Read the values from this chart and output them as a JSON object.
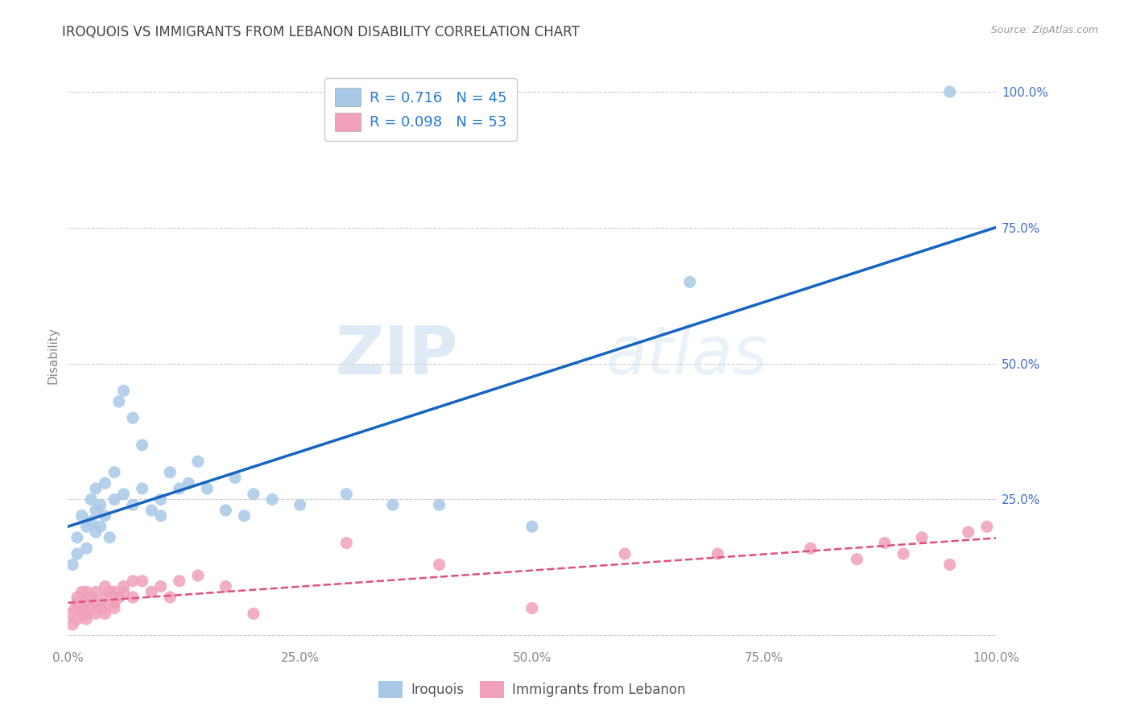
{
  "title": "IROQUOIS VS IMMIGRANTS FROM LEBANON DISABILITY CORRELATION CHART",
  "source": "Source: ZipAtlas.com",
  "ylabel": "Disability",
  "watermark_zip": "ZIP",
  "watermark_atlas": "atlas",
  "iroquois_R": 0.716,
  "iroquois_N": 45,
  "lebanon_R": 0.098,
  "lebanon_N": 53,
  "blue_color": "#a8c8e8",
  "blue_line_color": "#1565c0",
  "pink_color": "#f0a0b8",
  "pink_line_color": "#e05080",
  "iroquois_x": [
    0.005,
    0.01,
    0.01,
    0.015,
    0.02,
    0.02,
    0.025,
    0.025,
    0.03,
    0.03,
    0.03,
    0.035,
    0.035,
    0.04,
    0.04,
    0.045,
    0.05,
    0.05,
    0.055,
    0.06,
    0.06,
    0.07,
    0.07,
    0.08,
    0.08,
    0.09,
    0.1,
    0.1,
    0.11,
    0.12,
    0.13,
    0.14,
    0.15,
    0.17,
    0.18,
    0.19,
    0.2,
    0.22,
    0.25,
    0.3,
    0.35,
    0.4,
    0.5,
    0.67,
    0.95
  ],
  "iroquois_y": [
    0.13,
    0.18,
    0.15,
    0.22,
    0.2,
    0.16,
    0.21,
    0.25,
    0.19,
    0.23,
    0.27,
    0.2,
    0.24,
    0.22,
    0.28,
    0.18,
    0.25,
    0.3,
    0.43,
    0.45,
    0.26,
    0.4,
    0.24,
    0.35,
    0.27,
    0.23,
    0.25,
    0.22,
    0.3,
    0.27,
    0.28,
    0.32,
    0.27,
    0.23,
    0.29,
    0.22,
    0.26,
    0.25,
    0.24,
    0.26,
    0.24,
    0.24,
    0.2,
    0.65,
    1.0
  ],
  "lebanon_x": [
    0.002,
    0.005,
    0.008,
    0.01,
    0.01,
    0.01,
    0.015,
    0.015,
    0.015,
    0.02,
    0.02,
    0.02,
    0.02,
    0.025,
    0.025,
    0.03,
    0.03,
    0.03,
    0.035,
    0.04,
    0.04,
    0.04,
    0.04,
    0.045,
    0.05,
    0.05,
    0.05,
    0.055,
    0.06,
    0.06,
    0.07,
    0.07,
    0.08,
    0.09,
    0.1,
    0.11,
    0.12,
    0.14,
    0.17,
    0.2,
    0.3,
    0.4,
    0.5,
    0.6,
    0.7,
    0.8,
    0.85,
    0.88,
    0.9,
    0.92,
    0.95,
    0.97,
    0.99
  ],
  "lebanon_y": [
    0.04,
    0.02,
    0.05,
    0.03,
    0.06,
    0.07,
    0.04,
    0.08,
    0.05,
    0.06,
    0.04,
    0.03,
    0.08,
    0.05,
    0.07,
    0.04,
    0.06,
    0.08,
    0.05,
    0.07,
    0.05,
    0.09,
    0.04,
    0.08,
    0.06,
    0.08,
    0.05,
    0.07,
    0.08,
    0.09,
    0.07,
    0.1,
    0.1,
    0.08,
    0.09,
    0.07,
    0.1,
    0.11,
    0.09,
    0.04,
    0.17,
    0.13,
    0.05,
    0.15,
    0.15,
    0.16,
    0.14,
    0.17,
    0.15,
    0.18,
    0.13,
    0.19,
    0.2
  ],
  "xlim": [
    0.0,
    1.0
  ],
  "ylim": [
    -0.02,
    1.05
  ],
  "xticks": [
    0.0,
    0.25,
    0.5,
    0.75,
    1.0
  ],
  "xtick_labels": [
    "0.0%",
    "25.0%",
    "50.0%",
    "75.0%",
    "100.0%"
  ],
  "yticks": [
    0.0,
    0.25,
    0.5,
    0.75,
    1.0
  ],
  "ytick_labels_right": [
    "",
    "25.0%",
    "50.0%",
    "75.0%",
    "100.0%"
  ],
  "grid_color": "#cccccc",
  "background_color": "#ffffff",
  "title_color": "#444444",
  "axis_label_color": "#4472c4",
  "tick_color": "#888888"
}
